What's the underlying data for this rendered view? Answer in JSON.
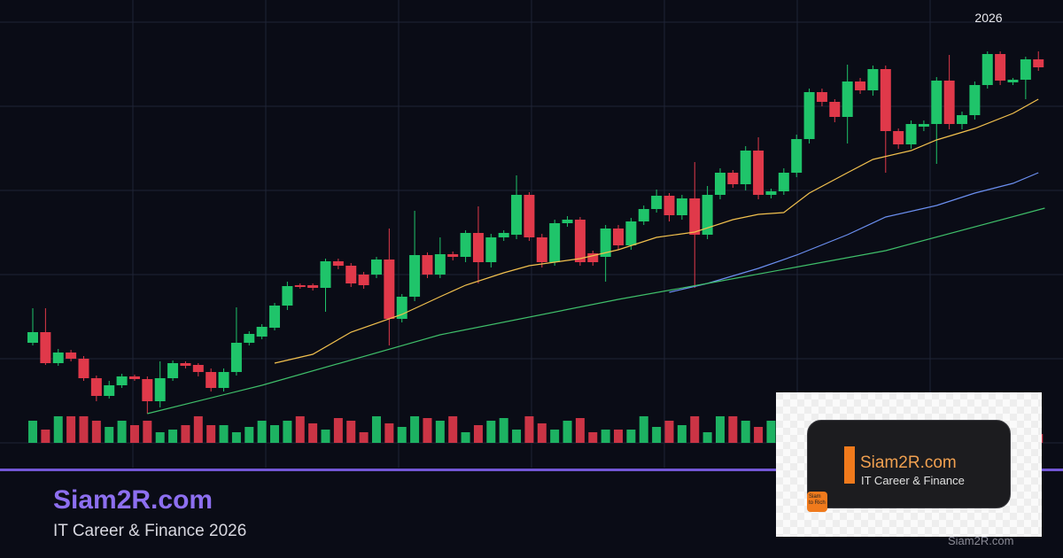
{
  "chart_data": {
    "type": "candlestick",
    "annotation": "2026",
    "up_color": "#1fc46a",
    "down_color": "#e0394a",
    "ylim": [
      0,
      475
    ],
    "grid": true,
    "open": [
      113,
      125,
      90,
      102,
      95,
      73,
      53,
      65,
      75,
      72,
      47,
      73,
      90,
      88,
      80,
      62,
      80,
      113,
      120,
      130,
      155,
      178,
      178,
      175,
      205,
      200,
      190,
      190,
      207,
      140,
      165,
      212,
      190,
      213,
      210,
      237,
      204,
      232,
      235,
      280,
      232,
      204,
      248,
      252,
      214,
      210,
      242,
      223,
      250,
      264,
      279,
      257,
      276,
      235,
      280,
      305,
      292,
      330,
      280,
      284,
      305,
      343,
      396,
      385,
      368,
      408,
      398,
      422,
      352,
      337,
      357,
      360,
      409,
      360,
      370,
      404,
      439,
      407,
      410,
      433
    ],
    "high": [
      152,
      152,
      106,
      105,
      98,
      76,
      70,
      78,
      77,
      75,
      92,
      93,
      92,
      90,
      84,
      84,
      153,
      126,
      134,
      158,
      182,
      180,
      180,
      208,
      208,
      203,
      193,
      210,
      242,
      168,
      262,
      215,
      232,
      216,
      240,
      267,
      236,
      240,
      302,
      283,
      236,
      252,
      256,
      255,
      217,
      246,
      246,
      254,
      268,
      286,
      282,
      280,
      317,
      290,
      310,
      308,
      335,
      345,
      287,
      310,
      348,
      400,
      400,
      388,
      427,
      412,
      426,
      426,
      355,
      364,
      364,
      413,
      438,
      374,
      408,
      442,
      442,
      412,
      436,
      442
    ],
    "low": [
      110,
      88,
      87,
      92,
      70,
      47,
      50,
      62,
      70,
      33,
      40,
      70,
      84,
      75,
      58,
      58,
      76,
      110,
      117,
      127,
      150,
      174,
      172,
      148,
      196,
      176,
      174,
      186,
      110,
      136,
      160,
      186,
      186,
      206,
      204,
      180,
      198,
      228,
      230,
      228,
      198,
      200,
      244,
      200,
      200,
      182,
      218,
      218,
      246,
      260,
      250,
      252,
      175,
      230,
      275,
      288,
      285,
      275,
      276,
      280,
      300,
      338,
      380,
      362,
      338,
      394,
      392,
      305,
      332,
      332,
      352,
      315,
      354,
      354,
      365,
      400,
      404,
      404,
      388,
      420
    ],
    "close": [
      125,
      90,
      102,
      95,
      73,
      53,
      65,
      75,
      72,
      47,
      73,
      90,
      87,
      80,
      62,
      80,
      113,
      123,
      131,
      155,
      177,
      176,
      175,
      205,
      200,
      180,
      178,
      207,
      140,
      165,
      212,
      190,
      213,
      210,
      237,
      204,
      232,
      237,
      280,
      232,
      204,
      248,
      252,
      204,
      204,
      242,
      223,
      250,
      264,
      279,
      257,
      276,
      235,
      280,
      305,
      292,
      330,
      280,
      284,
      305,
      343,
      396,
      385,
      368,
      408,
      398,
      422,
      352,
      337,
      360,
      360,
      409,
      360,
      370,
      404,
      439,
      409,
      410,
      433,
      424
    ],
    "volume": [
      25,
      15,
      30,
      30,
      30,
      25,
      18,
      25,
      20,
      25,
      12,
      15,
      20,
      30,
      20,
      20,
      12,
      18,
      25,
      20,
      25,
      30,
      22,
      15,
      28,
      25,
      12,
      30,
      22,
      18,
      30,
      28,
      25,
      30,
      12,
      20,
      25,
      28,
      15,
      30,
      22,
      15,
      25,
      28,
      12,
      15,
      15,
      15,
      30,
      18,
      25,
      20,
      30,
      12,
      30,
      30,
      25,
      18,
      25,
      20,
      20,
      28,
      15,
      25,
      20,
      15,
      22,
      25,
      18,
      20,
      30,
      25,
      15,
      20,
      18,
      28,
      22,
      15,
      25,
      10
    ],
    "overlays": [
      {
        "color": "#f2c14e",
        "x": [
          19,
          22,
          25,
          29,
          32,
          34,
          37,
          39,
          43,
          46,
          49,
          52,
          55,
          57,
          59,
          61,
          64,
          66,
          69,
          71,
          74,
          77,
          79
        ],
        "values": [
          90,
          100,
          125,
          145,
          165,
          178,
          192,
          200,
          208,
          218,
          232,
          238,
          252,
          258,
          260,
          282,
          305,
          320,
          330,
          342,
          355,
          372,
          388
        ]
      },
      {
        "color": "#6b8ff0",
        "x": [
          50,
          53,
          57,
          60,
          64,
          67,
          71,
          74,
          77,
          79
        ],
        "values": [
          170,
          180,
          197,
          212,
          235,
          255,
          268,
          282,
          293,
          305
        ]
      },
      {
        "color": "#3fbf6a",
        "x": [
          9,
          18,
          32,
          46,
          53,
          67,
          79.5
        ],
        "values": [
          33,
          65,
          122,
          162,
          180,
          217,
          265
        ]
      }
    ]
  },
  "brand": {
    "title": "Siam2R.com",
    "subtitle": "IT Career & Finance 2026"
  },
  "logo": {
    "title": "Siam2R.com",
    "subtitle": "IT Career & Finance",
    "icon": "Siam to Rich"
  },
  "watermark": "Siam2R.com"
}
